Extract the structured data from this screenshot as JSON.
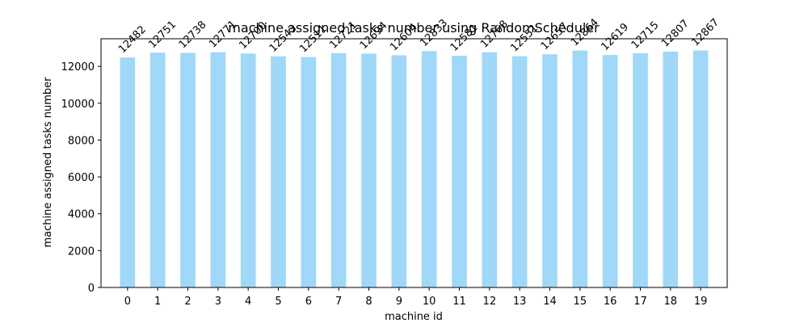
{
  "chart_data": {
    "type": "bar",
    "title": "machine assigned tasks number using RandomScheduler",
    "xlabel": "machine id",
    "ylabel": "machine assigned tasks number",
    "categories": [
      "0",
      "1",
      "2",
      "3",
      "4",
      "5",
      "6",
      "7",
      "8",
      "9",
      "10",
      "11",
      "12",
      "13",
      "14",
      "15",
      "16",
      "17",
      "18",
      "19"
    ],
    "values": [
      12482,
      12751,
      12738,
      12771,
      12700,
      12543,
      12511,
      12721,
      12694,
      12604,
      12833,
      12581,
      12768,
      12551,
      12657,
      12864,
      12619,
      12715,
      12807,
      12867
    ],
    "ylim": [
      0,
      13500
    ],
    "yticks": [
      0,
      2000,
      4000,
      6000,
      8000,
      10000,
      12000
    ],
    "grid": false,
    "legend": "none",
    "bar_color": "#9fd8f9",
    "data_labels": true
  }
}
